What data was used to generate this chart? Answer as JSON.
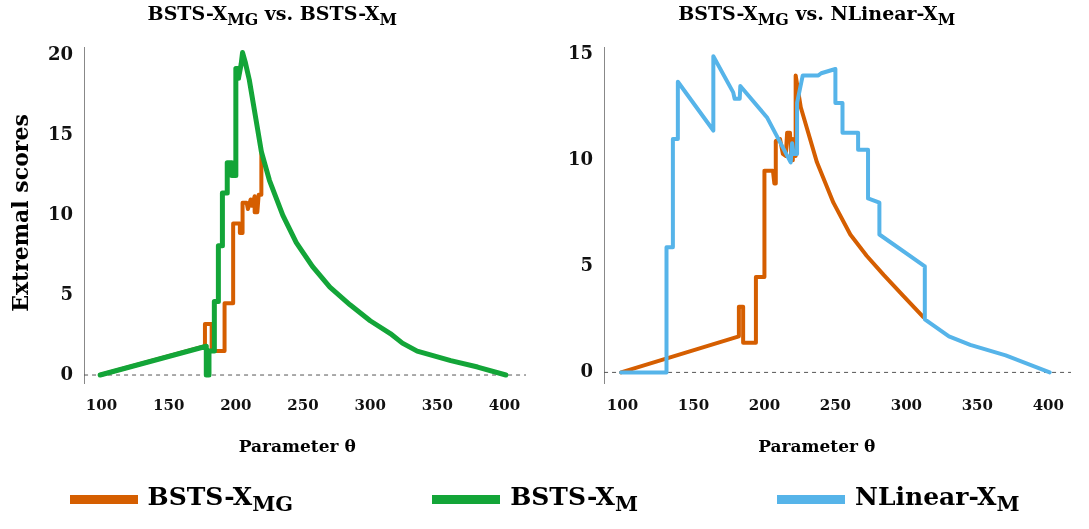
{
  "chart_data": [
    {
      "type": "line",
      "title": "BSTS-X$_{MG}$ vs.  BSTS-X$_{M}$",
      "xlabel": "Parameter θ",
      "ylabel": "Extremal scores",
      "xlim": [
        87,
        416
      ],
      "xticks": [
        100,
        150,
        200,
        250,
        300,
        350,
        400
      ],
      "ylim": [
        -0.5,
        20.5
      ],
      "yticks": [
        0,
        5,
        10,
        15,
        20
      ],
      "legend": "bottom",
      "ref_lines": [
        {
          "axis": "y",
          "value": 0,
          "line_style": "dashed",
          "color": "#555555"
        }
      ],
      "series": [
        {
          "name": "BSTS-X$_{MG}$",
          "color": "#d55e00",
          "x": [
            99,
            177,
            177,
            182,
            182,
            191.6,
            191.6,
            198,
            198,
            203,
            203,
            205,
            205,
            208,
            209,
            211,
            212,
            214,
            214,
            216,
            217,
            219,
            219
          ],
          "values": [
            0,
            1.8,
            3.2,
            3.2,
            1.5,
            1.5,
            4.5,
            4.5,
            9.5,
            9.5,
            8.9,
            8.9,
            10.8,
            10.8,
            10.4,
            11,
            10.6,
            11.2,
            10.2,
            10.2,
            11.3,
            11.3,
            14
          ]
        },
        {
          "name": "BSTS-X$_{M}$",
          "color": "#13a538",
          "x": [
            99,
            178,
            178,
            180,
            180,
            184,
            184,
            187,
            187,
            190,
            190,
            193.6,
            193.6,
            197,
            197,
            200,
            200,
            202,
            202,
            204,
            205,
            207,
            210,
            215,
            219,
            225,
            235,
            245,
            257,
            270,
            285,
            300,
            315,
            324,
            335,
            360,
            380,
            401
          ],
          "values": [
            0,
            1.8,
            0,
            0,
            1.5,
            1.5,
            4.6,
            4.6,
            8.1,
            8.1,
            11.4,
            11.4,
            13.3,
            13.3,
            12.5,
            12.5,
            19.2,
            19.2,
            18.6,
            19.5,
            20.2,
            19.6,
            18.5,
            16,
            14,
            12.2,
            10,
            8.3,
            6.8,
            5.5,
            4.4,
            3.4,
            2.6,
            2,
            1.5,
            0.9,
            0.5,
            0
          ]
        }
      ]
    },
    {
      "type": "line",
      "title": "BSTS-X$_{MG}$ vs. NLinear-X$_{M}$",
      "xlabel": "Parameter θ",
      "xlim": [
        87,
        416
      ],
      "xticks": [
        100,
        150,
        200,
        250,
        300,
        350,
        400
      ],
      "ylim": [
        -0.5,
        15.3
      ],
      "yticks": [
        0,
        5,
        10,
        15
      ],
      "legend": "bottom",
      "ref_lines": [
        {
          "axis": "y",
          "value": 0,
          "line_style": "dashed",
          "color": "#555555"
        }
      ],
      "series": [
        {
          "color": "#d55e00",
          "x": [
            99,
            182,
            182,
            185,
            185,
            194,
            194,
            200,
            200,
            206,
            207,
            208,
            208,
            211,
            213,
            215,
            216,
            218,
            219,
            220,
            220,
            222,
            222,
            225.6,
            237,
            248.6,
            260.5,
            272,
            284,
            298,
            312
          ],
          "values": [
            0,
            1.7,
            3.1,
            3.1,
            1.4,
            1.4,
            4.5,
            4.5,
            9.5,
            9.5,
            8.9,
            8.9,
            10.9,
            11,
            10.3,
            10.2,
            11.3,
            11.3,
            10,
            10,
            11,
            10.2,
            14,
            12.5,
            9.9,
            8,
            6.5,
            5.5,
            4.6,
            3.6,
            2.6
          ]
        },
        {
          "name": "NLinear-X$_{M}$",
          "color": "#56b4e9",
          "x": [
            99,
            131,
            131,
            135.5,
            135.5,
            139,
            139,
            164,
            164,
            178,
            179,
            182.6,
            183,
            202,
            218.5,
            219.5,
            220.5,
            223,
            223,
            227,
            238,
            240,
            250,
            250,
            251,
            255,
            255,
            266,
            266,
            273,
            273,
            281,
            281,
            313,
            313,
            330,
            345,
            370,
            401
          ],
          "values": [
            0,
            0,
            5.9,
            5.9,
            11,
            11,
            13.7,
            11.4,
            14.9,
            13.2,
            12.9,
            12.9,
            13.5,
            12,
            9.9,
            10.8,
            10.3,
            10.3,
            12.7,
            14,
            14,
            14.1,
            14.3,
            12.7,
            12.7,
            12.7,
            11.3,
            11.3,
            10.5,
            10.5,
            8.2,
            8,
            6.5,
            5,
            2.5,
            1.7,
            1.3,
            0.8,
            0
          ]
        }
      ]
    }
  ]
}
